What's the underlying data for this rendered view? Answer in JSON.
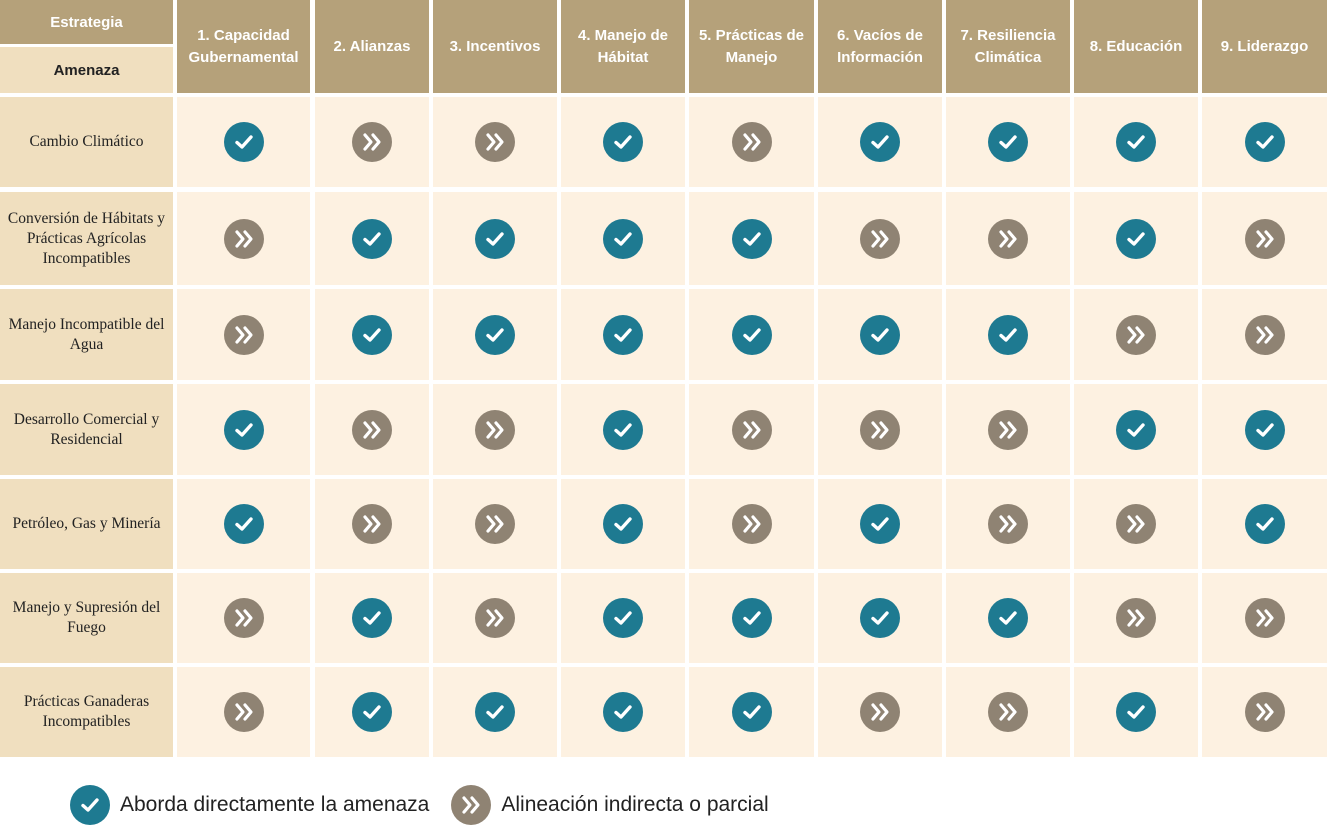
{
  "header": {
    "strategy_label": "Estrategia",
    "threat_label": "Amenaza",
    "strategies": [
      "1. Capacidad Gubernamental",
      "2. Alianzas",
      "3. Incentivos",
      "4. Manejo de Hábitat",
      "5. Prácticas de Manejo",
      "6. Vacíos de Información",
      "7.  Resiliencia Climática",
      "8. Educación",
      "9. Liderazgo"
    ]
  },
  "rows": [
    {
      "threat": "Cambio Climático",
      "marks": [
        "direct",
        "indirect",
        "indirect",
        "direct",
        "indirect",
        "direct",
        "direct",
        "direct",
        "direct"
      ]
    },
    {
      "threat": "Conversión de Hábitats y Prácticas Agrícolas Incompatibles",
      "marks": [
        "indirect",
        "direct",
        "direct",
        "direct",
        "direct",
        "indirect",
        "indirect",
        "direct",
        "indirect"
      ]
    },
    {
      "threat": "Manejo Incompatible del Agua",
      "marks": [
        "indirect",
        "direct",
        "direct",
        "direct",
        "direct",
        "direct",
        "direct",
        "indirect",
        "indirect"
      ]
    },
    {
      "threat": "Desarrollo Comercial y Residencial",
      "marks": [
        "direct",
        "indirect",
        "indirect",
        "direct",
        "indirect",
        "indirect",
        "indirect",
        "direct",
        "direct"
      ]
    },
    {
      "threat": "Petróleo, Gas y Minería",
      "marks": [
        "direct",
        "indirect",
        "indirect",
        "direct",
        "indirect",
        "direct",
        "indirect",
        "indirect",
        "direct"
      ]
    },
    {
      "threat": "Manejo y Supresión del Fuego",
      "marks": [
        "indirect",
        "direct",
        "indirect",
        "direct",
        "direct",
        "direct",
        "direct",
        "indirect",
        "indirect"
      ]
    },
    {
      "threat": "Prácticas Ganaderas Incompatibles",
      "marks": [
        "indirect",
        "direct",
        "direct",
        "direct",
        "direct",
        "indirect",
        "indirect",
        "direct",
        "indirect"
      ]
    }
  ],
  "legend": {
    "direct_label": "Aborda directamente la amenaza",
    "indirect_label": "Alineación indirecta o parcial"
  },
  "colors": {
    "direct": "#1e7a91",
    "indirect": "#8f8373"
  },
  "icons": {
    "direct": "check-circle-icon",
    "indirect": "double-chevron-right-icon"
  }
}
